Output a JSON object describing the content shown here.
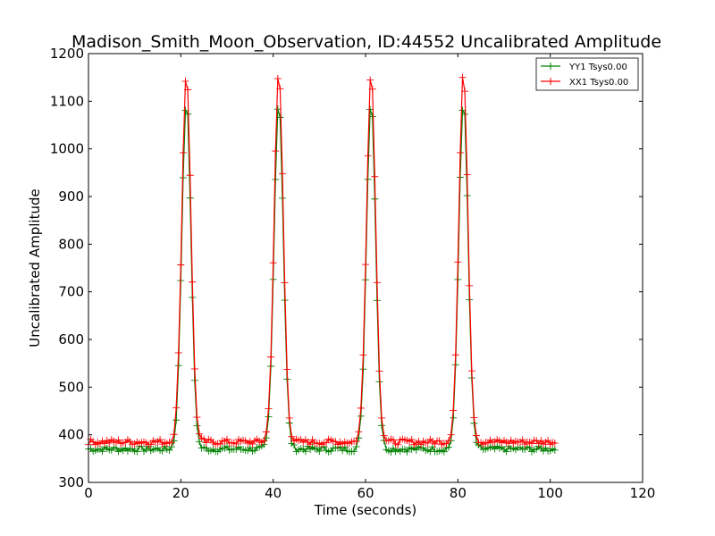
{
  "chart_data": {
    "type": "line",
    "title": "Madison_Smith_Moon_Observation, ID:44552 Uncalibrated Amplitude",
    "xlabel": "Time (seconds)",
    "ylabel": "Uncalibrated Amplitude",
    "xlim": [
      0,
      120
    ],
    "ylim": [
      300,
      1200
    ],
    "xticks": [
      0,
      20,
      40,
      60,
      80,
      100,
      120
    ],
    "yticks": [
      300,
      400,
      500,
      600,
      700,
      800,
      900,
      1000,
      1100,
      1200
    ],
    "grid": false,
    "legend_position": "top-right",
    "sample_interval": 0.5,
    "x_range": [
      0,
      101
    ],
    "peaks": [
      21.2,
      41.2,
      61.2,
      81.2
    ],
    "series": [
      {
        "name": "YY1 Tsys0.00",
        "color": "#008000",
        "baseline": 370,
        "peak_value": 1100,
        "peak_width": 1.0
      },
      {
        "name": "XX1 Tsys0.00",
        "color": "#ff0000",
        "baseline": 385,
        "peak_value": 1160,
        "peak_width": 1.0
      }
    ]
  }
}
